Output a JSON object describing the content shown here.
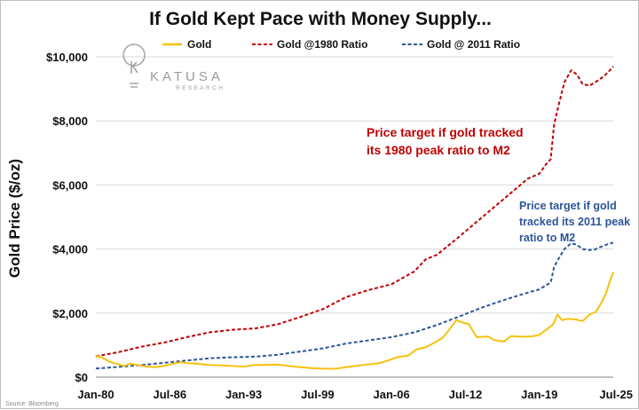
{
  "chart_data": {
    "type": "line",
    "title": "If Gold Kept Pace with Money Supply...",
    "ylabel": "Gold Price ($/oz)",
    "xlabel": "",
    "ylim": [
      0,
      10000
    ],
    "y_ticks": [
      0,
      2000,
      4000,
      6000,
      8000,
      10000
    ],
    "y_tick_labels": [
      "$0",
      "$2,000",
      "$4,000",
      "$6,000",
      "$8,000",
      "$10,000"
    ],
    "x_range": [
      1980.0,
      2025.5
    ],
    "x_ticks": [
      1980.0,
      1986.5,
      1993.0,
      1999.5,
      2006.0,
      2012.5,
      2019.0,
      2025.5
    ],
    "x_tick_labels": [
      "Jan-80",
      "Jul-86",
      "Jan-93",
      "Jul-99",
      "Jan-06",
      "Jul-12",
      "Jan-19",
      "Jul-25"
    ],
    "grid": "horizontal",
    "legend_position": "top",
    "series": [
      {
        "name": "Gold",
        "color": "#f4c20d",
        "style": "solid",
        "x": [
          1980.0,
          1980.1,
          1980.4,
          1980.8,
          1981.2,
          1981.8,
          1982.5,
          1983.0,
          1983.5,
          1984.5,
          1985.2,
          1986.0,
          1986.8,
          1987.5,
          1987.9,
          1988.8,
          1990.0,
          1991.5,
          1993.0,
          1994.0,
          1996.0,
          1997.5,
          1999.0,
          1999.7,
          2001.0,
          2002.0,
          2003.0,
          2004.0,
          2005.0,
          2006.0,
          2006.5,
          2007.5,
          2008.2,
          2009.0,
          2009.9,
          2010.5,
          2011.0,
          2011.7,
          2012.3,
          2012.8,
          2013.5,
          2014.5,
          2015.0,
          2015.9,
          2016.5,
          2017.5,
          2018.5,
          2019.0,
          2019.6,
          2020.2,
          2020.6,
          2021.0,
          2021.5,
          2022.2,
          2022.8,
          2023.4,
          2024.0,
          2024.5,
          2024.9,
          2025.2,
          2025.5
        ],
        "y": [
          620,
          660,
          630,
          560,
          480,
          420,
          350,
          420,
          390,
          330,
          310,
          350,
          420,
          470,
          440,
          420,
          380,
          360,
          330,
          380,
          390,
          330,
          280,
          270,
          260,
          310,
          360,
          400,
          440,
          560,
          620,
          680,
          870,
          930,
          1100,
          1230,
          1450,
          1780,
          1700,
          1650,
          1250,
          1270,
          1160,
          1110,
          1280,
          1260,
          1280,
          1320,
          1480,
          1640,
          1950,
          1780,
          1820,
          1800,
          1750,
          1950,
          2050,
          2350,
          2650,
          3000,
          3280
        ]
      },
      {
        "name": "Gold @1980 Ratio",
        "color": "#c00000",
        "style": "dashed",
        "x": [
          1980.0,
          1982.0,
          1984.0,
          1986.0,
          1988.0,
          1990.0,
          1992.0,
          1994.0,
          1996.0,
          1998.0,
          2000.0,
          2002.0,
          2004.0,
          2006.0,
          2008.0,
          2009.0,
          2010.0,
          2012.0,
          2014.0,
          2016.0,
          2018.0,
          2019.0,
          2019.6,
          2020.0,
          2020.3,
          2020.7,
          2021.2,
          2021.8,
          2022.3,
          2022.8,
          2023.4,
          2023.9,
          2024.5,
          2025.0,
          2025.5
        ],
        "y": [
          650,
          780,
          950,
          1080,
          1250,
          1400,
          1480,
          1520,
          1650,
          1880,
          2130,
          2500,
          2720,
          2900,
          3300,
          3680,
          3820,
          4400,
          5000,
          5600,
          6200,
          6350,
          6650,
          6800,
          7900,
          8500,
          9200,
          9580,
          9450,
          9150,
          9100,
          9200,
          9350,
          9500,
          9700
        ]
      },
      {
        "name": "Gold @ 2011 Ratio",
        "color": "#2e5597",
        "style": "dashed",
        "x": [
          1980.0,
          1982.0,
          1984.0,
          1986.0,
          1988.0,
          1990.0,
          1992.0,
          1994.0,
          1996.0,
          1998.0,
          2000.0,
          2002.0,
          2004.0,
          2006.0,
          2008.0,
          2010.0,
          2012.0,
          2014.0,
          2016.0,
          2018.0,
          2019.0,
          2019.6,
          2020.0,
          2020.3,
          2020.7,
          2021.2,
          2021.8,
          2022.3,
          2022.8,
          2023.4,
          2023.9,
          2024.5,
          2025.0,
          2025.5
        ],
        "y": [
          270,
          320,
          380,
          450,
          520,
          590,
          620,
          640,
          700,
          800,
          900,
          1050,
          1150,
          1250,
          1400,
          1630,
          1900,
          2180,
          2420,
          2640,
          2740,
          2870,
          2950,
          3450,
          3700,
          4000,
          4180,
          4130,
          4000,
          3970,
          3990,
          4080,
          4150,
          4200
        ]
      }
    ],
    "annotations": [
      {
        "lines": [
          "Price target if gold tracked",
          "its 1980 peak ratio to M2"
        ],
        "color": "#c00000"
      },
      {
        "lines": [
          "Price target if gold",
          "tracked its 2011 peak",
          "ratio to M2"
        ],
        "color": "#2e5597"
      }
    ],
    "logo": {
      "name": "KATUSA",
      "sub": "RESEARCH",
      "icon": "lightbulb-k-icon"
    },
    "source": "Source: Bloomberg"
  }
}
